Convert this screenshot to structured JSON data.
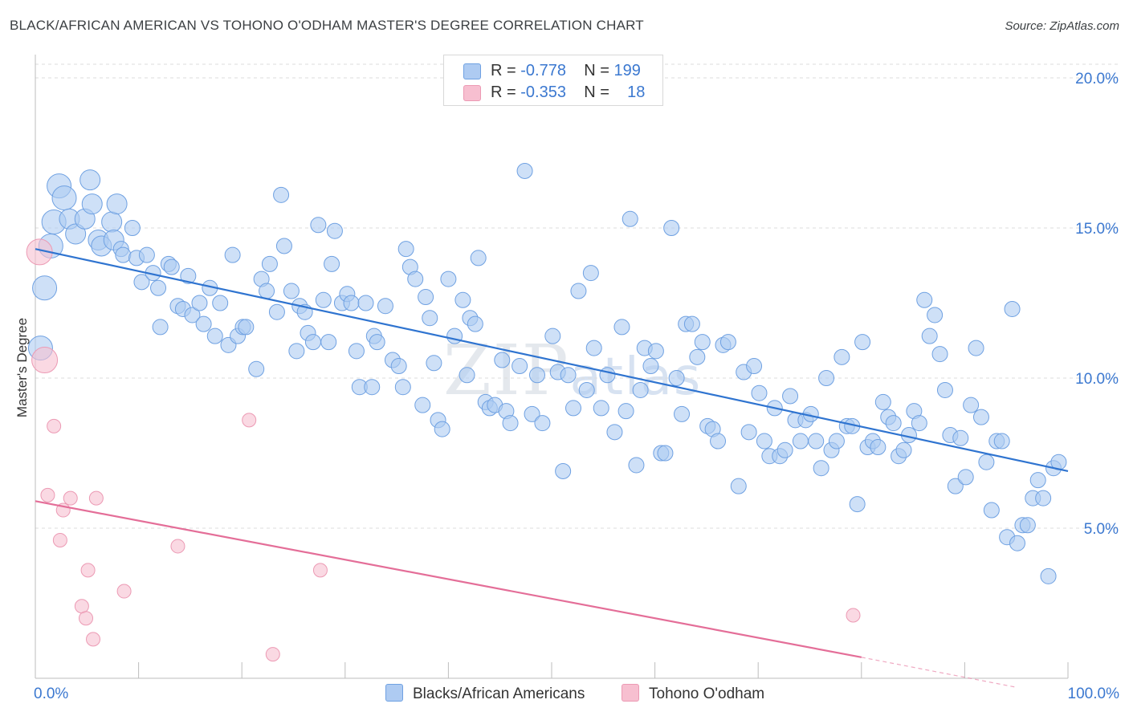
{
  "title": "BLACK/AFRICAN AMERICAN VS TOHONO O'ODHAM MASTER'S DEGREE CORRELATION CHART",
  "source": "Source: ZipAtlas.com",
  "watermark": {
    "bold": "ZIP",
    "light": "atlas"
  },
  "legend": {
    "rows": [
      {
        "r_label": "R = ",
        "r_value": "-0.778",
        "n_label": "N = ",
        "n_value": "199",
        "color": "#aecbf2"
      },
      {
        "r_label": "R = ",
        "r_value": "-0.353",
        "n_label": "N = ",
        "n_value": "18",
        "color": "#f7bfd0"
      }
    ]
  },
  "bottom_legend": [
    {
      "label": "Blacks/African Americans",
      "color": "#aecbf2"
    },
    {
      "label": "Tohono O'odham",
      "color": "#f7bfd0"
    }
  ],
  "chart_data": {
    "type": "scatter",
    "title": "BLACK/AFRICAN AMERICAN VS TOHONO O'ODHAM MASTER'S DEGREE CORRELATION CHART",
    "xlabel": "",
    "ylabel": "Master's Degree",
    "xlim": [
      0,
      100
    ],
    "ylim": [
      0,
      20
    ],
    "x_tick_labels": [
      {
        "value": 0,
        "label": "0.0%"
      },
      {
        "value": 100,
        "label": "100.0%"
      }
    ],
    "y_tick_labels": [
      {
        "value": 5,
        "label": "5.0%"
      },
      {
        "value": 10,
        "label": "10.0%"
      },
      {
        "value": 15,
        "label": "15.0%"
      },
      {
        "value": 20,
        "label": "20.0%"
      }
    ],
    "grid": true,
    "legend_position": "top-center",
    "series": [
      {
        "name": "Blacks/African Americans",
        "color": "#6fa1e2",
        "fill": "#aecbf2",
        "trend": {
          "x0": 0,
          "y0": 14.3,
          "x1": 100,
          "y1": 6.9,
          "color": "#2f74d0"
        },
        "points": [
          [
            0.5,
            11.0
          ],
          [
            0.9,
            13.0
          ],
          [
            1.5,
            14.4
          ],
          [
            1.8,
            15.2
          ],
          [
            2.3,
            16.4
          ],
          [
            2.8,
            16.0
          ],
          [
            3.3,
            15.3
          ],
          [
            3.9,
            14.8
          ],
          [
            4.8,
            15.3
          ],
          [
            5.3,
            16.6
          ],
          [
            5.5,
            15.8
          ],
          [
            6.1,
            14.6
          ],
          [
            6.4,
            14.4
          ],
          [
            7.4,
            15.2
          ],
          [
            7.6,
            14.6
          ],
          [
            7.9,
            15.8
          ],
          [
            8.3,
            14.3
          ],
          [
            8.5,
            14.1
          ],
          [
            9.4,
            15.0
          ],
          [
            9.8,
            14.0
          ],
          [
            10.3,
            13.2
          ],
          [
            10.8,
            14.1
          ],
          [
            11.4,
            13.5
          ],
          [
            11.9,
            13.0
          ],
          [
            12.1,
            11.7
          ],
          [
            12.9,
            13.8
          ],
          [
            13.2,
            13.7
          ],
          [
            13.8,
            12.4
          ],
          [
            14.3,
            12.3
          ],
          [
            14.8,
            13.4
          ],
          [
            15.2,
            12.1
          ],
          [
            15.9,
            12.5
          ],
          [
            16.3,
            11.8
          ],
          [
            16.9,
            13.0
          ],
          [
            17.4,
            11.4
          ],
          [
            17.9,
            12.5
          ],
          [
            18.7,
            11.1
          ],
          [
            19.1,
            14.1
          ],
          [
            19.6,
            11.4
          ],
          [
            20.1,
            11.7
          ],
          [
            20.4,
            11.7
          ],
          [
            21.4,
            10.3
          ],
          [
            21.9,
            13.3
          ],
          [
            22.4,
            12.9
          ],
          [
            22.7,
            13.8
          ],
          [
            23.4,
            12.2
          ],
          [
            24.1,
            14.4
          ],
          [
            23.8,
            16.1
          ],
          [
            24.8,
            12.9
          ],
          [
            25.3,
            10.9
          ],
          [
            25.6,
            12.4
          ],
          [
            26.1,
            12.2
          ],
          [
            26.4,
            11.5
          ],
          [
            26.9,
            11.2
          ],
          [
            27.4,
            15.1
          ],
          [
            27.9,
            12.6
          ],
          [
            28.4,
            11.2
          ],
          [
            28.7,
            13.8
          ],
          [
            29.0,
            14.9
          ],
          [
            29.7,
            12.5
          ],
          [
            30.2,
            12.8
          ],
          [
            30.6,
            12.5
          ],
          [
            31.1,
            10.9
          ],
          [
            31.4,
            9.7
          ],
          [
            32.0,
            12.5
          ],
          [
            32.6,
            9.7
          ],
          [
            32.8,
            11.4
          ],
          [
            33.1,
            11.2
          ],
          [
            33.9,
            12.4
          ],
          [
            34.6,
            10.6
          ],
          [
            35.2,
            10.4
          ],
          [
            35.6,
            9.7
          ],
          [
            35.9,
            14.3
          ],
          [
            36.3,
            13.7
          ],
          [
            36.8,
            13.3
          ],
          [
            37.5,
            9.1
          ],
          [
            37.8,
            12.7
          ],
          [
            38.2,
            12.0
          ],
          [
            38.6,
            10.5
          ],
          [
            39.0,
            8.6
          ],
          [
            39.4,
            8.3
          ],
          [
            40.0,
            13.3
          ],
          [
            40.6,
            11.4
          ],
          [
            41.4,
            12.6
          ],
          [
            41.8,
            10.1
          ],
          [
            42.1,
            12.0
          ],
          [
            42.6,
            11.8
          ],
          [
            42.9,
            14.0
          ],
          [
            43.6,
            9.2
          ],
          [
            44.0,
            9.0
          ],
          [
            44.5,
            9.1
          ],
          [
            45.2,
            10.6
          ],
          [
            45.6,
            8.9
          ],
          [
            46.0,
            8.5
          ],
          [
            47.4,
            16.9
          ],
          [
            46.9,
            10.4
          ],
          [
            48.1,
            8.8
          ],
          [
            48.6,
            10.1
          ],
          [
            49.1,
            8.5
          ],
          [
            50.1,
            11.4
          ],
          [
            50.6,
            10.2
          ],
          [
            51.1,
            6.9
          ],
          [
            51.6,
            10.1
          ],
          [
            52.1,
            9.0
          ],
          [
            52.6,
            12.9
          ],
          [
            53.4,
            9.6
          ],
          [
            53.8,
            13.5
          ],
          [
            54.1,
            11.0
          ],
          [
            54.8,
            9.0
          ],
          [
            55.4,
            10.1
          ],
          [
            56.1,
            8.2
          ],
          [
            56.8,
            11.7
          ],
          [
            57.2,
            8.9
          ],
          [
            57.6,
            15.3
          ],
          [
            58.2,
            7.1
          ],
          [
            58.6,
            9.6
          ],
          [
            59.0,
            11.0
          ],
          [
            59.6,
            10.4
          ],
          [
            60.1,
            10.9
          ],
          [
            60.6,
            7.5
          ],
          [
            61.0,
            7.5
          ],
          [
            61.6,
            15.0
          ],
          [
            62.1,
            10.0
          ],
          [
            62.6,
            8.8
          ],
          [
            63.0,
            11.8
          ],
          [
            63.6,
            11.8
          ],
          [
            64.1,
            10.7
          ],
          [
            64.6,
            11.2
          ],
          [
            65.1,
            8.4
          ],
          [
            65.6,
            8.3
          ],
          [
            66.1,
            7.9
          ],
          [
            66.6,
            11.1
          ],
          [
            67.1,
            11.2
          ],
          [
            68.1,
            6.4
          ],
          [
            68.6,
            10.2
          ],
          [
            69.1,
            8.2
          ],
          [
            69.6,
            10.4
          ],
          [
            70.1,
            9.5
          ],
          [
            70.6,
            7.9
          ],
          [
            71.1,
            7.4
          ],
          [
            71.6,
            9.0
          ],
          [
            72.1,
            7.4
          ],
          [
            72.6,
            7.6
          ],
          [
            73.1,
            9.4
          ],
          [
            73.6,
            8.6
          ],
          [
            74.1,
            7.9
          ],
          [
            74.6,
            8.6
          ],
          [
            75.1,
            8.8
          ],
          [
            75.6,
            7.9
          ],
          [
            76.1,
            7.0
          ],
          [
            76.6,
            10.0
          ],
          [
            77.1,
            7.6
          ],
          [
            77.6,
            7.9
          ],
          [
            78.1,
            10.7
          ],
          [
            78.6,
            8.4
          ],
          [
            79.1,
            8.4
          ],
          [
            79.6,
            5.8
          ],
          [
            80.1,
            11.2
          ],
          [
            80.6,
            7.7
          ],
          [
            81.1,
            7.9
          ],
          [
            81.6,
            7.7
          ],
          [
            82.1,
            9.2
          ],
          [
            82.6,
            8.7
          ],
          [
            83.1,
            8.5
          ],
          [
            83.6,
            7.4
          ],
          [
            84.1,
            7.6
          ],
          [
            84.6,
            8.1
          ],
          [
            85.1,
            8.9
          ],
          [
            85.6,
            8.5
          ],
          [
            86.1,
            12.6
          ],
          [
            86.6,
            11.4
          ],
          [
            87.1,
            12.1
          ],
          [
            87.6,
            10.8
          ],
          [
            88.1,
            9.6
          ],
          [
            88.6,
            8.1
          ],
          [
            89.1,
            6.4
          ],
          [
            89.6,
            8.0
          ],
          [
            90.1,
            6.7
          ],
          [
            90.6,
            9.1
          ],
          [
            91.1,
            11.0
          ],
          [
            91.6,
            8.7
          ],
          [
            92.1,
            7.2
          ],
          [
            92.6,
            5.6
          ],
          [
            93.1,
            7.9
          ],
          [
            93.6,
            7.9
          ],
          [
            94.1,
            4.7
          ],
          [
            94.6,
            12.3
          ],
          [
            95.1,
            4.5
          ],
          [
            95.6,
            5.1
          ],
          [
            96.1,
            5.1
          ],
          [
            96.6,
            6.0
          ],
          [
            97.1,
            6.6
          ],
          [
            97.6,
            6.0
          ],
          [
            98.1,
            3.4
          ],
          [
            98.6,
            7.0
          ],
          [
            99.1,
            7.2
          ]
        ]
      },
      {
        "name": "Tohono O'odham",
        "color": "#ec9ab4",
        "fill": "#f7bfd0",
        "trend": {
          "x0": 0,
          "y0": 5.9,
          "x1": 80,
          "y1": 0.7,
          "dash_to_x": 95,
          "dash_to_y": -0.3,
          "color": "#e46e98"
        },
        "points": [
          [
            0.4,
            14.2
          ],
          [
            0.9,
            10.6
          ],
          [
            1.8,
            8.4
          ],
          [
            1.2,
            6.1
          ],
          [
            2.7,
            5.6
          ],
          [
            3.4,
            6.0
          ],
          [
            2.4,
            4.6
          ],
          [
            5.1,
            3.6
          ],
          [
            4.5,
            2.4
          ],
          [
            5.9,
            6.0
          ],
          [
            5.6,
            1.3
          ],
          [
            4.9,
            2.0
          ],
          [
            8.6,
            2.9
          ],
          [
            13.8,
            4.4
          ],
          [
            20.7,
            8.6
          ],
          [
            23.0,
            0.8
          ],
          [
            27.6,
            3.6
          ],
          [
            79.2,
            2.1
          ]
        ]
      }
    ]
  }
}
